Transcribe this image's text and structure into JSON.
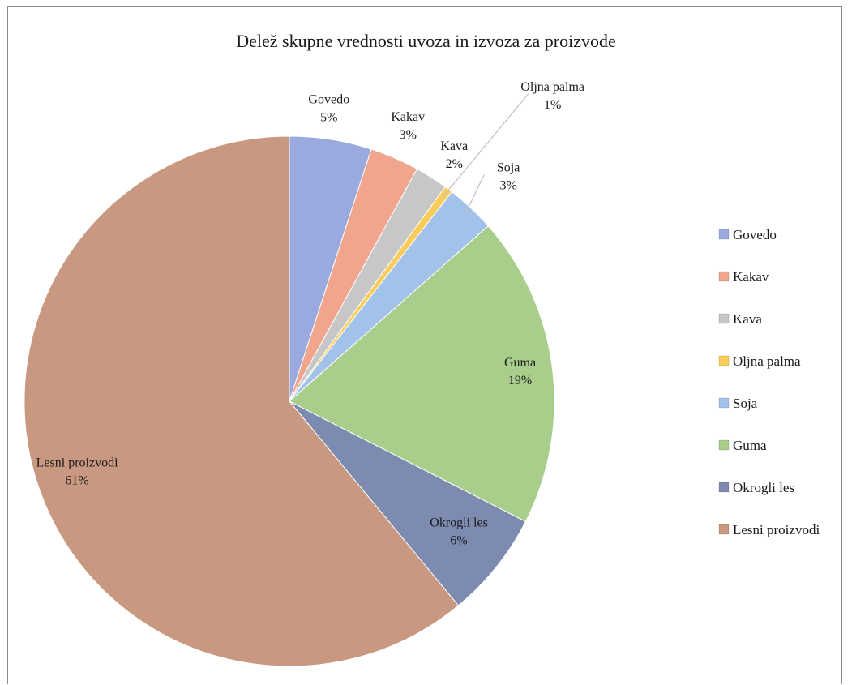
{
  "chart_data": {
    "type": "pie",
    "title": "Delež skupne vrednosti uvoza in izvoza za proizvode",
    "legend_position": "right",
    "slices": [
      {
        "name": "Govedo",
        "value": 5,
        "label": "5%",
        "color": "#9aa9de"
      },
      {
        "name": "Kakav",
        "value": 3,
        "label": "3%",
        "color": "#f0a58c"
      },
      {
        "name": "Kava",
        "value": 2,
        "label": "2%",
        "color": "#c7c7c7"
      },
      {
        "name": "Oljna palma",
        "value": 0.5,
        "label": "1%",
        "color": "#f7cc58"
      },
      {
        "name": "Soja",
        "value": 3,
        "label": "3%",
        "color": "#a3c2ea"
      },
      {
        "name": "Guma",
        "value": 19,
        "label": "19%",
        "color": "#a9cd8b"
      },
      {
        "name": "Okrogli les",
        "value": 6.5,
        "label": "6%",
        "color": "#7d8bb0"
      },
      {
        "name": "Lesni proizvodi",
        "value": 61,
        "label": "61%",
        "color": "#c89880"
      }
    ]
  }
}
